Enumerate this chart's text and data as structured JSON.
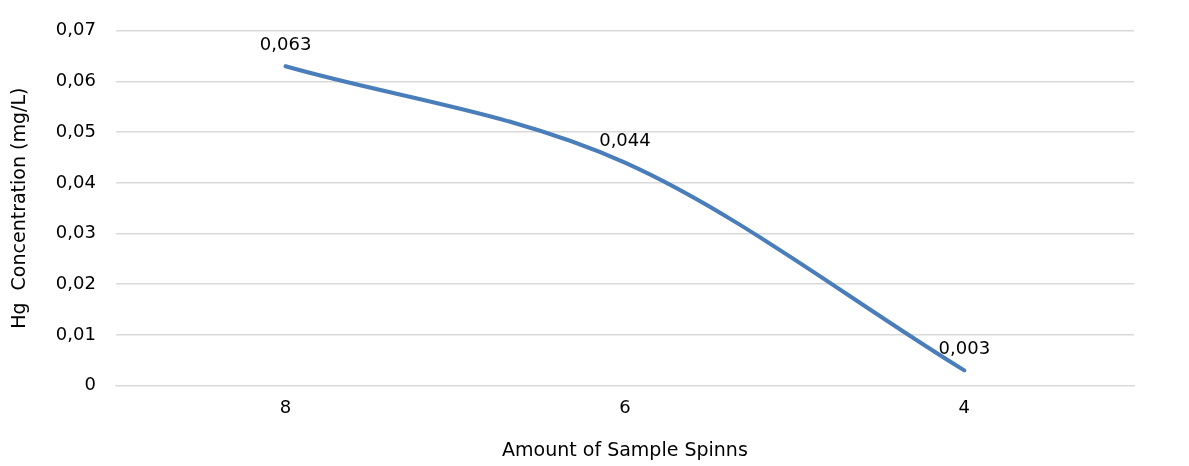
{
  "chart_data": {
    "type": "line",
    "xlabel": "Amount of Sample Spinns",
    "ylabel": "Hg  Concentration (mg/L)",
    "categories": [
      "8",
      "6",
      "4"
    ],
    "series": [
      {
        "color": "#4a7ebb",
        "values": [
          0.063,
          0.044,
          0.003
        ],
        "value_labels": [
          "0,063",
          "0,044",
          "0,003"
        ]
      }
    ],
    "ylim": [
      0,
      0.07
    ],
    "yticks": [
      0,
      {
        "value": 0.01,
        "label": "0,01"
      },
      {
        "value": 0.02,
        "label": "0,02"
      },
      {
        "value": 0.03,
        "label": "0,03"
      },
      {
        "value": 0.04,
        "label": "0,04"
      },
      {
        "value": 0.05,
        "label": "0,05"
      },
      {
        "value": 0.06,
        "label": "0,06"
      },
      {
        "value": 0.07,
        "label": "0,07"
      }
    ],
    "grid": "y",
    "marker": "none",
    "line_style": "solid",
    "legend": false
  }
}
